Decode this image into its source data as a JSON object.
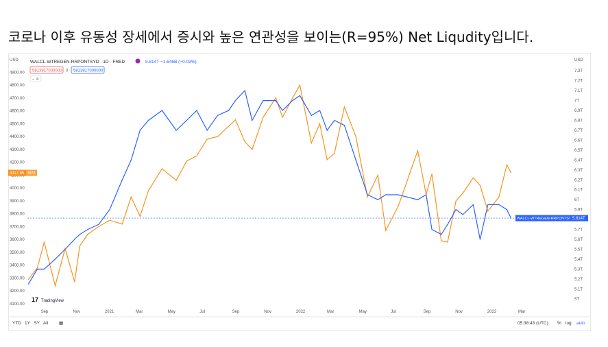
{
  "headline": "코로나 이후 유동성 장세에서 증시와 높은 연관성을 보이는(R=95%) Net Liqudity입니다.",
  "header": {
    "symbol": "WALCL-WTREGEN-RRPONTSYD · 1D · FRED",
    "change": "5.814T −1.646B (−0.03%)",
    "sell_value": "5813917000000",
    "buy_value": "5813917000000",
    "spread": "0",
    "indicator_count": "4"
  },
  "axes": {
    "left_unit": "USD",
    "right_unit": "USD",
    "left_ticks": [
      "3100.00",
      "3200.00",
      "3300.00",
      "3400.00",
      "3500.00",
      "3600.00",
      "3700.00",
      "3800.00",
      "3900.00",
      "4000.00",
      "4100.00",
      "4200.00",
      "4300.00",
      "4400.00",
      "4500.00",
      "4600.00",
      "4700.00",
      "4800.00",
      "4900.00"
    ],
    "right_ticks": [
      "5T",
      "5.1T",
      "5.2T",
      "5.3T",
      "5.4T",
      "5.5T",
      "5.6T",
      "5.7T",
      "5.8T",
      "5.9T",
      "6T",
      "6.1T",
      "6.2T",
      "6.3T",
      "6.4T",
      "6.5T",
      "6.6T",
      "6.7T",
      "6.8T",
      "6.9T",
      "7T",
      "7.1T",
      "7.2T",
      "7.3T"
    ],
    "time_ticks": [
      "Sep",
      "Nov",
      "2021",
      "Mar",
      "May",
      "Jul",
      "Sep",
      "Nov",
      "2022",
      "Mar",
      "May",
      "Jul",
      "Sep",
      "Nov",
      "2023",
      "Mar"
    ]
  },
  "badges": {
    "spx_value": "4117.85",
    "spx_label": "SPX",
    "liq_label": "WALCL-WTREGEN-RRPONTSYD",
    "liq_value": "5.814T"
  },
  "logo_text": "TradingView",
  "bottom": {
    "ranges": [
      "YTD",
      "1Y",
      "5Y",
      "All"
    ],
    "time": "05:38:43 (UTC)",
    "percent": "%",
    "log": "log",
    "auto": "auto"
  },
  "colors": {
    "spx": "#f7931e",
    "liquidity": "#2962ff",
    "text": "#555555"
  },
  "chart_data": {
    "type": "line",
    "x_range": [
      "2020-08",
      "2023-03"
    ],
    "series": [
      {
        "name": "SPX",
        "axis": "left",
        "x": [
          "2020-08-03",
          "2020-08-20",
          "2020-09-02",
          "2020-09-23",
          "2020-10-12",
          "2020-10-30",
          "2020-11-09",
          "2020-11-24",
          "2020-12-15",
          "2021-01-05",
          "2021-01-29",
          "2021-02-15",
          "2021-03-04",
          "2021-03-20",
          "2021-04-15",
          "2021-05-12",
          "2021-06-01",
          "2021-06-20",
          "2021-07-10",
          "2021-07-30",
          "2021-08-20",
          "2021-09-02",
          "2021-09-20",
          "2021-10-04",
          "2021-10-25",
          "2021-11-18",
          "2021-12-01",
          "2021-12-20",
          "2022-01-03",
          "2022-01-25",
          "2022-02-10",
          "2022-02-24",
          "2022-03-10",
          "2022-03-29",
          "2022-04-20",
          "2022-05-12",
          "2022-06-01",
          "2022-06-16",
          "2022-07-10",
          "2022-08-16",
          "2022-09-01",
          "2022-09-12",
          "2022-09-30",
          "2022-10-12",
          "2022-10-28",
          "2022-11-10",
          "2022-11-30",
          "2022-12-13",
          "2022-12-28",
          "2023-01-18",
          "2023-02-02",
          "2023-02-10"
        ],
        "values": [
          3290,
          3380,
          3580,
          3240,
          3530,
          3270,
          3550,
          3640,
          3700,
          3750,
          3720,
          3930,
          3780,
          3980,
          4150,
          4060,
          4210,
          4250,
          4380,
          4400,
          4480,
          4530,
          4360,
          4300,
          4550,
          4700,
          4550,
          4700,
          4800,
          4350,
          4500,
          4220,
          4270,
          4630,
          4400,
          3930,
          4100,
          3670,
          3860,
          4290,
          3950,
          4110,
          3590,
          3580,
          3900,
          3960,
          4080,
          4020,
          3820,
          3930,
          4180,
          4120
        ]
      },
      {
        "name": "WALCL-WTREGEN-RRPONTSYD",
        "axis": "right",
        "x": [
          "2020-08-03",
          "2020-08-20",
          "2020-09-02",
          "2020-09-23",
          "2020-10-12",
          "2020-10-30",
          "2020-11-09",
          "2020-11-24",
          "2020-12-15",
          "2021-01-05",
          "2021-01-29",
          "2021-02-15",
          "2021-03-04",
          "2021-03-20",
          "2021-04-15",
          "2021-05-12",
          "2021-06-01",
          "2021-06-20",
          "2021-07-10",
          "2021-07-30",
          "2021-08-20",
          "2021-09-02",
          "2021-09-20",
          "2021-10-04",
          "2021-10-25",
          "2021-11-18",
          "2021-12-01",
          "2021-12-20",
          "2022-01-03",
          "2022-01-25",
          "2022-02-10",
          "2022-02-24",
          "2022-03-10",
          "2022-03-29",
          "2022-04-20",
          "2022-05-12",
          "2022-06-01",
          "2022-06-16",
          "2022-07-10",
          "2022-08-16",
          "2022-09-01",
          "2022-09-12",
          "2022-09-30",
          "2022-10-12",
          "2022-10-28",
          "2022-11-10",
          "2022-11-30",
          "2022-12-13",
          "2022-12-28",
          "2023-01-18",
          "2023-02-02",
          "2023-02-10"
        ],
        "values": [
          5.15,
          5.3,
          5.3,
          5.4,
          5.5,
          5.6,
          5.65,
          5.7,
          5.75,
          5.9,
          6.2,
          6.4,
          6.7,
          6.8,
          6.9,
          6.7,
          6.8,
          6.9,
          6.7,
          6.85,
          6.9,
          7.0,
          7.1,
          6.8,
          7.0,
          7.0,
          6.9,
          7.0,
          7.05,
          6.85,
          6.9,
          6.7,
          6.8,
          6.75,
          6.4,
          6.05,
          6.0,
          6.05,
          6.05,
          6.0,
          6.05,
          5.7,
          5.65,
          5.75,
          5.9,
          5.85,
          5.95,
          5.6,
          5.95,
          5.95,
          5.9,
          5.814
        ]
      }
    ],
    "ylim_left": [
      3100,
      4950
    ],
    "ylim_right": [
      4.95,
      7.35
    ],
    "title": "WALCL-WTREGEN-RRPONTSYD · 1D · FRED",
    "legend": [
      "SPX",
      "WALCL-WTREGEN-RRPONTSYD"
    ],
    "grid": false
  }
}
